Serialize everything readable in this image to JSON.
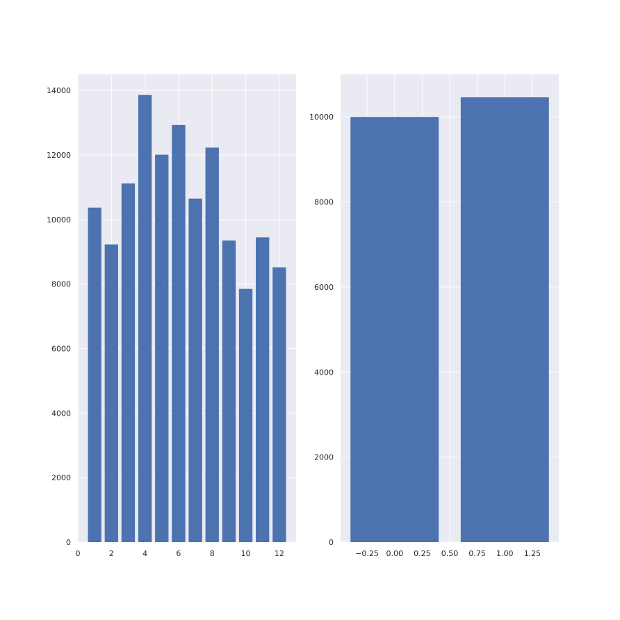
{
  "colors": {
    "background": "#ffffff",
    "plot_area": "#eaeaf2",
    "grid": "#ffffff",
    "bar": "#4c72b0",
    "tick_text": "#262626"
  },
  "chart_data": [
    {
      "type": "bar",
      "title": "",
      "xlabel": "",
      "ylabel": "",
      "x": [
        1,
        2,
        3,
        4,
        5,
        6,
        7,
        8,
        9,
        10,
        11,
        12
      ],
      "values": [
        10370,
        9230,
        11120,
        13860,
        12010,
        12930,
        10650,
        12230,
        9350,
        7850,
        9450,
        8520
      ],
      "bar_width": 0.8,
      "xlim": [
        0,
        13.0
      ],
      "ylim": [
        0,
        14500
      ],
      "xticks": [
        0,
        2,
        4,
        6,
        8,
        10,
        12
      ],
      "xtick_labels": [
        "0",
        "2",
        "4",
        "6",
        "8",
        "10",
        "12"
      ],
      "yticks": [
        0,
        2000,
        4000,
        6000,
        8000,
        10000,
        12000,
        14000
      ],
      "ytick_labels": [
        "0",
        "2000",
        "4000",
        "6000",
        "8000",
        "10000",
        "12000",
        "14000"
      ],
      "grid": true,
      "legend": "none"
    },
    {
      "type": "bar",
      "title": "",
      "xlabel": "",
      "ylabel": "",
      "x": [
        0,
        1
      ],
      "values": [
        10000,
        10460
      ],
      "bar_width": 0.8,
      "xlim": [
        -0.49,
        1.49
      ],
      "ylim": [
        0,
        11000
      ],
      "xticks": [
        -0.25,
        0.0,
        0.25,
        0.5,
        0.75,
        1.0,
        1.25
      ],
      "xtick_labels": [
        "−0.25",
        "0.00",
        "0.25",
        "0.50",
        "0.75",
        "1.00",
        "1.25"
      ],
      "yticks": [
        0,
        2000,
        4000,
        6000,
        8000,
        10000
      ],
      "ytick_labels": [
        "0",
        "2000",
        "4000",
        "6000",
        "8000",
        "10000"
      ],
      "grid": true,
      "legend": "none"
    }
  ]
}
